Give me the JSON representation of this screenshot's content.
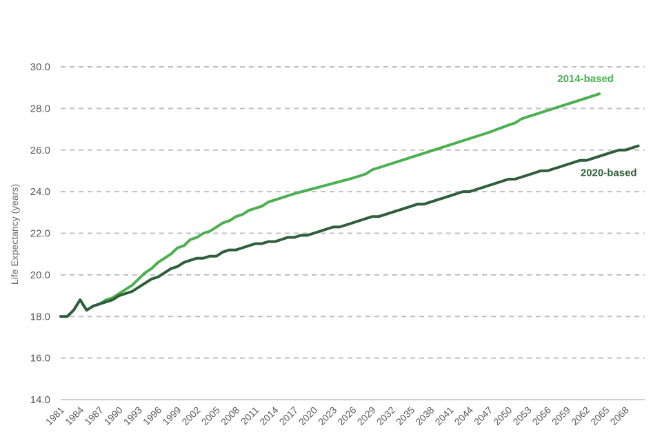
{
  "chart_data": {
    "type": "line",
    "title": "",
    "xlabel": "",
    "ylabel": "Life Expectancy (years)",
    "ylim": [
      14.0,
      30.0
    ],
    "yticks": [
      "14.0",
      "16.0",
      "18.0",
      "20.0",
      "22.0",
      "24.0",
      "26.0",
      "28.0",
      "30.0"
    ],
    "xticks": [
      1981,
      1984,
      1987,
      1990,
      1993,
      1996,
      1999,
      2002,
      2005,
      2008,
      2011,
      2014,
      2017,
      2020,
      2023,
      2026,
      2029,
      2032,
      2035,
      2038,
      2041,
      2044,
      2047,
      2050,
      2053,
      2056,
      2059,
      2062,
      2065,
      2068
    ],
    "xlim": [
      1981,
      2071
    ],
    "grid": true,
    "legend": "inline labels at line ends",
    "series": [
      {
        "name": "2014-based",
        "color": "#4caf50",
        "points": [
          [
            1981,
            18.0
          ],
          [
            1982,
            18.0
          ],
          [
            1983,
            18.3
          ],
          [
            1984,
            18.8
          ],
          [
            1985,
            18.3
          ],
          [
            1986,
            18.5
          ],
          [
            1987,
            18.6
          ],
          [
            1988,
            18.8
          ],
          [
            1989,
            18.9
          ],
          [
            1990,
            19.1
          ],
          [
            1991,
            19.3
          ],
          [
            1992,
            19.5
          ],
          [
            1993,
            19.8
          ],
          [
            1994,
            20.1
          ],
          [
            1995,
            20.3
          ],
          [
            1996,
            20.6
          ],
          [
            1997,
            20.8
          ],
          [
            1998,
            21.0
          ],
          [
            1999,
            21.3
          ],
          [
            2000,
            21.4
          ],
          [
            2001,
            21.7
          ],
          [
            2002,
            21.8
          ],
          [
            2003,
            22.0
          ],
          [
            2004,
            22.1
          ],
          [
            2005,
            22.3
          ],
          [
            2006,
            22.5
          ],
          [
            2007,
            22.6
          ],
          [
            2008,
            22.8
          ],
          [
            2009,
            22.9
          ],
          [
            2010,
            23.1
          ],
          [
            2011,
            23.2
          ],
          [
            2012,
            23.3
          ],
          [
            2013,
            23.5
          ],
          [
            2014,
            23.6
          ],
          [
            2017,
            23.9
          ],
          [
            2020,
            24.15
          ],
          [
            2023,
            24.4
          ],
          [
            2026,
            24.65
          ],
          [
            2028,
            24.85
          ],
          [
            2029,
            25.05
          ],
          [
            2032,
            25.35
          ],
          [
            2035,
            25.65
          ],
          [
            2038,
            25.95
          ],
          [
            2041,
            26.25
          ],
          [
            2044,
            26.55
          ],
          [
            2047,
            26.85
          ],
          [
            2050,
            27.2
          ],
          [
            2051,
            27.3
          ],
          [
            2052,
            27.5
          ],
          [
            2053,
            27.6
          ],
          [
            2056,
            27.9
          ],
          [
            2059,
            28.2
          ],
          [
            2062,
            28.5
          ],
          [
            2064,
            28.7
          ]
        ]
      },
      {
        "name": "2020-based",
        "color": "#2e5e3a",
        "points": [
          [
            1981,
            18.0
          ],
          [
            1982,
            18.0
          ],
          [
            1983,
            18.3
          ],
          [
            1984,
            18.8
          ],
          [
            1985,
            18.3
          ],
          [
            1986,
            18.5
          ],
          [
            1987,
            18.6
          ],
          [
            1988,
            18.7
          ],
          [
            1989,
            18.8
          ],
          [
            1990,
            19.0
          ],
          [
            1991,
            19.1
          ],
          [
            1992,
            19.2
          ],
          [
            1993,
            19.4
          ],
          [
            1994,
            19.6
          ],
          [
            1995,
            19.8
          ],
          [
            1996,
            19.9
          ],
          [
            1997,
            20.1
          ],
          [
            1998,
            20.3
          ],
          [
            1999,
            20.4
          ],
          [
            2000,
            20.6
          ],
          [
            2001,
            20.7
          ],
          [
            2002,
            20.8
          ],
          [
            2003,
            20.8
          ],
          [
            2004,
            20.9
          ],
          [
            2005,
            20.9
          ],
          [
            2006,
            21.1
          ],
          [
            2007,
            21.2
          ],
          [
            2008,
            21.2
          ],
          [
            2009,
            21.3
          ],
          [
            2010,
            21.4
          ],
          [
            2011,
            21.5
          ],
          [
            2012,
            21.5
          ],
          [
            2013,
            21.6
          ],
          [
            2014,
            21.6
          ],
          [
            2015,
            21.7
          ],
          [
            2016,
            21.8
          ],
          [
            2017,
            21.8
          ],
          [
            2018,
            21.9
          ],
          [
            2019,
            21.9
          ],
          [
            2020,
            22.0
          ],
          [
            2023,
            22.3
          ],
          [
            2024,
            22.3
          ],
          [
            2026,
            22.5
          ],
          [
            2029,
            22.8
          ],
          [
            2030,
            22.8
          ],
          [
            2032,
            23.0
          ],
          [
            2035,
            23.3
          ],
          [
            2036,
            23.4
          ],
          [
            2037,
            23.4
          ],
          [
            2038,
            23.5
          ],
          [
            2039,
            23.6
          ],
          [
            2041,
            23.8
          ],
          [
            2042,
            23.9
          ],
          [
            2043,
            24.0
          ],
          [
            2044,
            24.0
          ],
          [
            2045,
            24.1
          ],
          [
            2047,
            24.3
          ],
          [
            2050,
            24.6
          ],
          [
            2051,
            24.6
          ],
          [
            2053,
            24.8
          ],
          [
            2055,
            25.0
          ],
          [
            2056,
            25.0
          ],
          [
            2058,
            25.2
          ],
          [
            2059,
            25.3
          ],
          [
            2061,
            25.5
          ],
          [
            2062,
            25.5
          ],
          [
            2064,
            25.7
          ],
          [
            2067,
            26.0
          ],
          [
            2068,
            26.0
          ],
          [
            2070,
            26.2
          ]
        ]
      }
    ]
  }
}
